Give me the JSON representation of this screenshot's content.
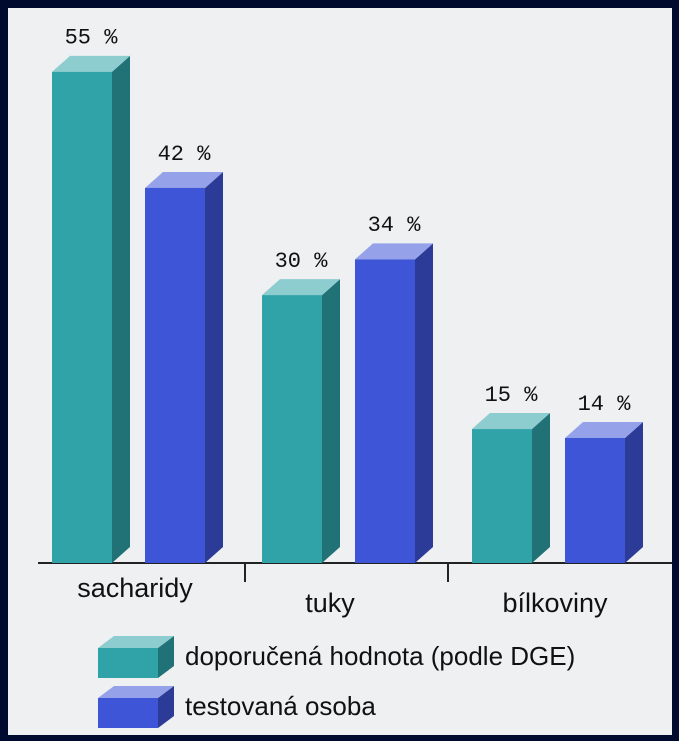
{
  "chart_data": {
    "type": "bar3d",
    "categories": [
      "sacharidy",
      "tuky",
      "bílkoviny"
    ],
    "series": [
      {
        "name": "doporučená hodnota (podle DGE)",
        "color": "#2fa3a8",
        "values": [
          55,
          30,
          15
        ],
        "value_labels": [
          "55 %",
          "30 %",
          "15 %"
        ]
      },
      {
        "name": "testovaná osoba",
        "color": "#3f55d8",
        "values": [
          42,
          34,
          14
        ],
        "value_labels": [
          "42 %",
          "34 %",
          "14 %"
        ]
      }
    ]
  }
}
